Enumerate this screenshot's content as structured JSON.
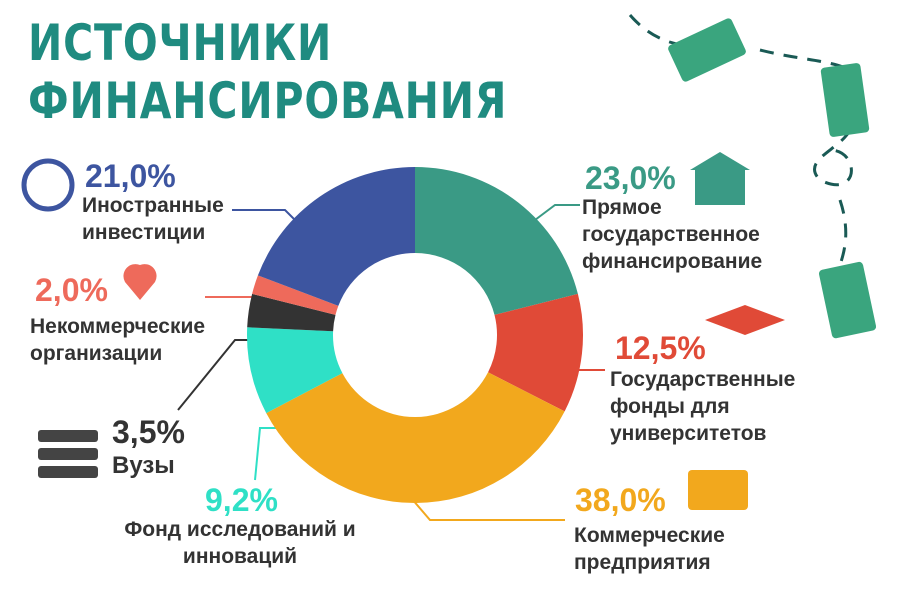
{
  "chart_data": {
    "type": "pie",
    "donut": true,
    "title": "ИСТОЧНИКИ ФИНАНСИРОВАНИЯ",
    "categories": [
      "Прямое государственное финансирование",
      "Государственные фонды для университетов",
      "Коммерческие предприятия",
      "Фонд исследований и инноваций",
      "Вузы",
      "Некоммерческие организации",
      "Иностранные инвестиции"
    ],
    "values": [
      23.0,
      12.5,
      38.0,
      9.2,
      3.5,
      2.0,
      21.0
    ],
    "value_labels": [
      "23,0%",
      "12,5%",
      "38,0%",
      "9,2%",
      "3,5%",
      "2,0%",
      "21,0%"
    ],
    "colors": [
      "#3a9a85",
      "#e04a37",
      "#f2a81d",
      "#2fe0c6",
      "#333333",
      "#ee6a5b",
      "#3d55a0"
    ]
  }
}
